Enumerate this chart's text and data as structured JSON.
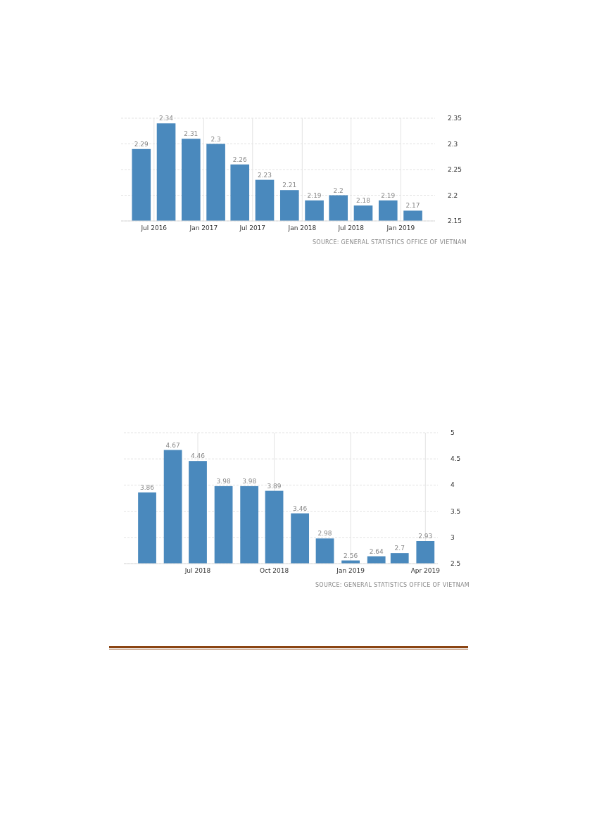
{
  "chart_data": [
    {
      "type": "bar",
      "x": [
        "2016-05-15",
        "2016-08-15",
        "2016-11-15",
        "2017-02-15",
        "2017-05-15",
        "2017-08-15",
        "2017-11-15",
        "2018-02-15",
        "2018-05-15",
        "2018-08-15",
        "2018-11-15",
        "2019-02-15"
      ],
      "values": [
        2.29,
        2.34,
        2.31,
        2.3,
        2.26,
        2.23,
        2.21,
        2.19,
        2.2,
        2.18,
        2.19,
        2.17
      ],
      "color": "#4a89bd",
      "xlim": [
        "2016-03-01",
        "2019-05-08"
      ],
      "xticks": [
        {
          "value": "2016-07-01",
          "label": "Jul 2016"
        },
        {
          "value": "2017-01-01",
          "label": "Jan 2017"
        },
        {
          "value": "2017-07-01",
          "label": "Jul 2017"
        },
        {
          "value": "2018-01-01",
          "label": "Jan 2018"
        },
        {
          "value": "2018-07-01",
          "label": "Jul 2018"
        },
        {
          "value": "2019-01-01",
          "label": "Jan 2019"
        }
      ],
      "ylim": [
        2.15,
        2.35
      ],
      "yticks": [
        2.15,
        2.2,
        2.25,
        2.3,
        2.35
      ],
      "grid": true,
      "data_labels": true,
      "annotations": [
        "SOURCE: GENERAL STATISTICS OFFICE OF VIETNAM"
      ]
    },
    {
      "type": "bar",
      "x": [
        "2018-05",
        "2018-06",
        "2018-07",
        "2018-08",
        "2018-09",
        "2018-10",
        "2018-11",
        "2018-12",
        "2019-01",
        "2019-02",
        "2019-03",
        "2019-04"
      ],
      "values": [
        3.86,
        4.67,
        4.46,
        3.98,
        3.98,
        3.89,
        3.46,
        2.98,
        2.56,
        2.64,
        2.7,
        2.93
      ],
      "color": "#4a89bd",
      "xlim": [
        "2018-04-03",
        "2019-04-16"
      ],
      "xticks": [
        {
          "value": "2018-07-01",
          "label": "Jul 2018"
        },
        {
          "value": "2018-10-01",
          "label": "Oct 2018"
        },
        {
          "value": "2019-01-01",
          "label": "Jan 2019"
        },
        {
          "value": "2019-04-01",
          "label": "Apr 2019"
        }
      ],
      "ylim": [
        2.5,
        5
      ],
      "yticks": [
        2.5,
        3,
        3.5,
        4,
        4.5,
        5
      ],
      "grid": true,
      "data_labels": true,
      "annotations": [
        "SOURCE: GENERAL STATISTICS OFFICE OF VIETNAM"
      ]
    }
  ]
}
